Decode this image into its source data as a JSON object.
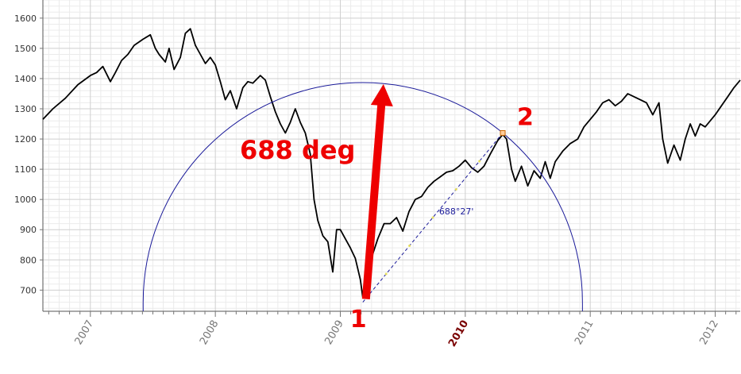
{
  "chart_data": {
    "type": "line",
    "title": "",
    "xlabel": "",
    "ylabel": "",
    "x_tick_labels": [
      "2007",
      "2008",
      "2009",
      "2010",
      "2011",
      "2012"
    ],
    "highlighted_x_tick": "2010",
    "y_tick_labels": [
      "700",
      "800",
      "900",
      "1000",
      "1100",
      "1200",
      "1300",
      "1400",
      "1500",
      "1600"
    ],
    "ylim": [
      630,
      1660
    ],
    "xlim": [
      2006.62,
      2012.2
    ],
    "grid": true,
    "series": [
      {
        "color": "#000000",
        "points": [
          [
            2006.62,
            1265
          ],
          [
            2006.7,
            1300
          ],
          [
            2006.8,
            1335
          ],
          [
            2006.9,
            1380
          ],
          [
            2007.0,
            1410
          ],
          [
            2007.05,
            1420
          ],
          [
            2007.1,
            1440
          ],
          [
            2007.16,
            1390
          ],
          [
            2007.2,
            1420
          ],
          [
            2007.25,
            1460
          ],
          [
            2007.3,
            1480
          ],
          [
            2007.35,
            1510
          ],
          [
            2007.42,
            1530
          ],
          [
            2007.48,
            1545
          ],
          [
            2007.52,
            1500
          ],
          [
            2007.55,
            1480
          ],
          [
            2007.6,
            1455
          ],
          [
            2007.63,
            1500
          ],
          [
            2007.67,
            1430
          ],
          [
            2007.72,
            1470
          ],
          [
            2007.76,
            1550
          ],
          [
            2007.8,
            1565
          ],
          [
            2007.84,
            1510
          ],
          [
            2007.88,
            1480
          ],
          [
            2007.92,
            1450
          ],
          [
            2007.96,
            1470
          ],
          [
            2008.0,
            1445
          ],
          [
            2008.04,
            1390
          ],
          [
            2008.08,
            1330
          ],
          [
            2008.12,
            1360
          ],
          [
            2008.17,
            1300
          ],
          [
            2008.22,
            1370
          ],
          [
            2008.26,
            1390
          ],
          [
            2008.3,
            1385
          ],
          [
            2008.36,
            1410
          ],
          [
            2008.4,
            1395
          ],
          [
            2008.44,
            1340
          ],
          [
            2008.48,
            1290
          ],
          [
            2008.52,
            1250
          ],
          [
            2008.56,
            1220
          ],
          [
            2008.6,
            1255
          ],
          [
            2008.64,
            1300
          ],
          [
            2008.68,
            1255
          ],
          [
            2008.72,
            1220
          ],
          [
            2008.76,
            1150
          ],
          [
            2008.79,
            1000
          ],
          [
            2008.82,
            930
          ],
          [
            2008.86,
            880
          ],
          [
            2008.9,
            860
          ],
          [
            2008.94,
            760
          ],
          [
            2008.97,
            900
          ],
          [
            2009.0,
            900
          ],
          [
            2009.04,
            870
          ],
          [
            2009.08,
            840
          ],
          [
            2009.12,
            805
          ],
          [
            2009.16,
            735
          ],
          [
            2009.18,
            676
          ],
          [
            2009.22,
            780
          ],
          [
            2009.26,
            820
          ],
          [
            2009.3,
            870
          ],
          [
            2009.35,
            920
          ],
          [
            2009.4,
            920
          ],
          [
            2009.45,
            940
          ],
          [
            2009.5,
            895
          ],
          [
            2009.55,
            960
          ],
          [
            2009.6,
            1000
          ],
          [
            2009.65,
            1010
          ],
          [
            2009.7,
            1040
          ],
          [
            2009.75,
            1060
          ],
          [
            2009.8,
            1075
          ],
          [
            2009.85,
            1090
          ],
          [
            2009.9,
            1095
          ],
          [
            2009.95,
            1110
          ],
          [
            2010.0,
            1130
          ],
          [
            2010.05,
            1105
          ],
          [
            2010.1,
            1090
          ],
          [
            2010.15,
            1110
          ],
          [
            2010.2,
            1150
          ],
          [
            2010.26,
            1195
          ],
          [
            2010.3,
            1215
          ],
          [
            2010.33,
            1200
          ],
          [
            2010.37,
            1100
          ],
          [
            2010.4,
            1060
          ],
          [
            2010.45,
            1110
          ],
          [
            2010.5,
            1045
          ],
          [
            2010.55,
            1095
          ],
          [
            2010.6,
            1070
          ],
          [
            2010.64,
            1125
          ],
          [
            2010.68,
            1070
          ],
          [
            2010.72,
            1125
          ],
          [
            2010.78,
            1160
          ],
          [
            2010.84,
            1185
          ],
          [
            2010.9,
            1200
          ],
          [
            2010.95,
            1240
          ],
          [
            2011.0,
            1265
          ],
          [
            2011.05,
            1290
          ],
          [
            2011.1,
            1320
          ],
          [
            2011.15,
            1330
          ],
          [
            2011.2,
            1310
          ],
          [
            2011.25,
            1325
          ],
          [
            2011.3,
            1350
          ],
          [
            2011.35,
            1340
          ],
          [
            2011.4,
            1330
          ],
          [
            2011.45,
            1320
          ],
          [
            2011.5,
            1280
          ],
          [
            2011.55,
            1320
          ],
          [
            2011.58,
            1200
          ],
          [
            2011.62,
            1120
          ],
          [
            2011.67,
            1180
          ],
          [
            2011.72,
            1130
          ],
          [
            2011.76,
            1200
          ],
          [
            2011.8,
            1250
          ],
          [
            2011.84,
            1210
          ],
          [
            2011.88,
            1250
          ],
          [
            2011.92,
            1240
          ],
          [
            2011.96,
            1260
          ],
          [
            2012.0,
            1280
          ],
          [
            2012.05,
            1310
          ],
          [
            2012.1,
            1340
          ],
          [
            2012.15,
            1370
          ],
          [
            2012.2,
            1395
          ]
        ]
      }
    ],
    "arc_center": [
      2009.18,
      660
    ],
    "arc_point": [
      2010.3,
      1220
    ],
    "arc_color": "#1a1a99",
    "angle_label": "688°27'",
    "annotations": {
      "label_1": "1",
      "label_2": "2",
      "degree_text": "688 deg",
      "color": "#ee0000"
    }
  }
}
